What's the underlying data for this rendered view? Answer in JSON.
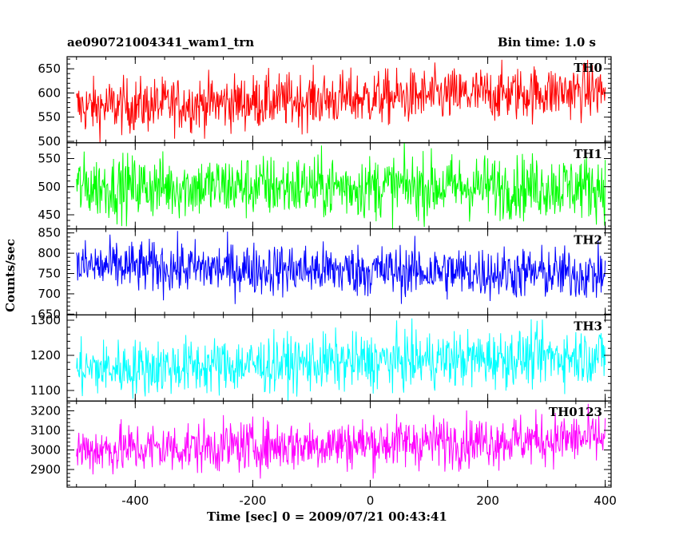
{
  "title_left": "ae090721004341_wam1_trn",
  "title_right": "Bin time: 1.0 s",
  "xlabel": "Time [sec] 0 = 2009/07/21 00:43:41",
  "ylabel": "Counts/sec",
  "chart_data": {
    "type": "line",
    "xlim": [
      -516,
      410
    ],
    "x_ticks": [
      -400,
      -200,
      0,
      200,
      400
    ],
    "x_range_data": [
      -500,
      400
    ],
    "bin_time_s": 1.0,
    "panels": [
      {
        "name": "TH0",
        "color": "#ff0000",
        "ylim": [
          497,
          675
        ],
        "y_ticks": [
          500,
          550,
          600,
          650
        ],
        "mean_start": 570,
        "mean_end": 605,
        "spread": 28
      },
      {
        "name": "TH1",
        "color": "#00ff00",
        "ylim": [
          425,
          578
        ],
        "y_ticks": [
          450,
          500,
          550
        ],
        "mean_start": 500,
        "mean_end": 500,
        "spread": 28
      },
      {
        "name": "TH2",
        "color": "#0000ff",
        "ylim": [
          648,
          860
        ],
        "y_ticks": [
          650,
          700,
          750,
          800,
          850
        ],
        "mean_start": 768,
        "mean_end": 748,
        "spread": 32
      },
      {
        "name": "TH3",
        "color": "#00ffff",
        "ylim": [
          1070,
          1315
        ],
        "y_ticks": [
          1100,
          1200,
          1300
        ],
        "mean_start": 1160,
        "mean_end": 1200,
        "spread": 40
      },
      {
        "name": "TH0123",
        "color": "#ff00ff",
        "ylim": [
          2810,
          3250
        ],
        "y_ticks": [
          2900,
          3000,
          3100,
          3200
        ],
        "mean_start": 3000,
        "mean_end": 3060,
        "spread": 65
      }
    ]
  }
}
